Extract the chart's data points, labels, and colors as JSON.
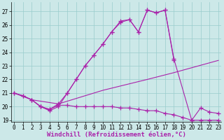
{
  "background_color": "#cce8e8",
  "grid_color": "#99cccc",
  "line_color": "#aa22aa",
  "xlim": [
    -0.3,
    23.3
  ],
  "ylim": [
    18.9,
    27.7
  ],
  "yticks": [
    19,
    20,
    21,
    22,
    23,
    24,
    25,
    26,
    27
  ],
  "xticks": [
    0,
    1,
    2,
    3,
    4,
    5,
    6,
    7,
    8,
    9,
    10,
    11,
    12,
    13,
    14,
    15,
    16,
    17,
    18,
    19,
    20,
    21,
    22,
    23
  ],
  "xlabel": "Windchill (Refroidissement éolien,°C)",
  "xlabel_fontsize": 6.5,
  "tick_fontsize": 5.5,
  "marker": "+",
  "markersize": 4,
  "linewidth": 0.8,
  "series": [
    {
      "x": [
        0,
        2,
        5,
        10,
        15,
        18,
        23
      ],
      "y": [
        21.0,
        20.5,
        20.2,
        21.2,
        22.0,
        22.5,
        23.4
      ]
    },
    {
      "x": [
        0,
        1,
        2,
        3,
        4,
        5,
        6,
        7,
        8,
        9,
        10,
        11,
        12,
        13,
        14,
        15,
        16,
        17,
        18,
        19,
        20,
        21,
        22,
        23
      ],
      "y": [
        21.0,
        20.8,
        20.5,
        20.0,
        19.8,
        20.1,
        20.1,
        20.0,
        20.0,
        20.0,
        20.0,
        20.0,
        19.9,
        19.9,
        19.8,
        19.7,
        19.7,
        19.5,
        19.4,
        19.2,
        19.0,
        19.0,
        19.0,
        19.0
      ]
    },
    {
      "x": [
        0,
        1,
        2,
        3,
        4,
        5,
        6,
        7,
        8,
        9,
        10,
        11,
        12,
        13,
        14,
        15,
        16,
        17,
        18,
        20,
        21,
        22,
        23
      ],
      "y": [
        21.0,
        20.8,
        20.5,
        20.0,
        19.7,
        20.0,
        21.0,
        22.0,
        23.0,
        23.8,
        24.6,
        25.5,
        26.2,
        26.4,
        25.5,
        27.1,
        26.9,
        27.1,
        23.5,
        19.0,
        19.9,
        19.6,
        19.5
      ]
    },
    {
      "x": [
        2,
        3,
        4,
        5,
        6,
        7,
        8,
        9,
        10,
        11,
        12,
        13,
        14,
        15,
        16,
        17,
        18
      ],
      "y": [
        20.5,
        20.0,
        19.8,
        20.2,
        21.0,
        22.0,
        23.0,
        23.8,
        24.6,
        25.5,
        26.3,
        26.4,
        25.5,
        27.1,
        26.9,
        27.1,
        23.4
      ]
    }
  ]
}
